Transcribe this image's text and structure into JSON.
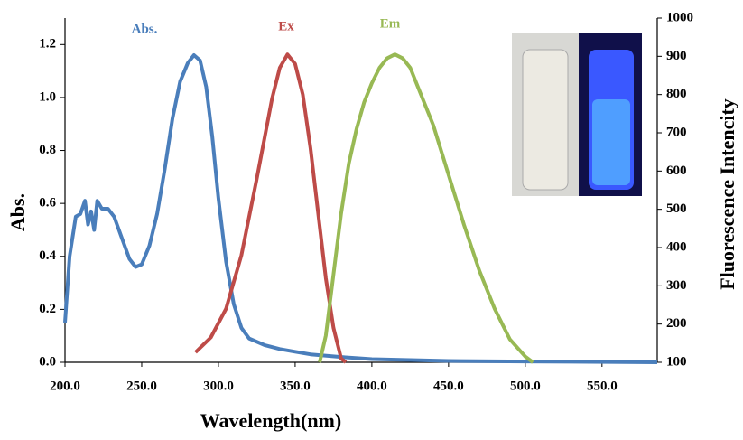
{
  "chart_data": {
    "type": "line",
    "x_label": "Wavelength(nm)",
    "y_label": "Abs.",
    "y2_label": "Fluorescence Intencity",
    "xlim": [
      200,
      586
    ],
    "ylim": [
      0,
      1.3
    ],
    "y2lim": [
      100,
      1000
    ],
    "xticks": [
      {
        "value": 200,
        "label": "200.0"
      },
      {
        "value": 250,
        "label": "250.0"
      },
      {
        "value": 300,
        "label": "300.0"
      },
      {
        "value": 350,
        "label": "350.0"
      },
      {
        "value": 400,
        "label": "400.0"
      },
      {
        "value": 450,
        "label": "450.0"
      },
      {
        "value": 500,
        "label": "500.0"
      },
      {
        "value": 550,
        "label": "550.0"
      }
    ],
    "yticks": [
      {
        "value": 0,
        "label": "0.0"
      },
      {
        "value": 0.2,
        "label": "0.2"
      },
      {
        "value": 0.4,
        "label": "0.4"
      },
      {
        "value": 0.6,
        "label": "0.6"
      },
      {
        "value": 0.8,
        "label": "0.8"
      },
      {
        "value": 1.0,
        "label": "1.0"
      },
      {
        "value": 1.2,
        "label": "1.2"
      }
    ],
    "y2ticks": [
      100,
      200,
      300,
      400,
      500,
      600,
      700,
      800,
      900,
      1000
    ],
    "series": [
      {
        "name": "Abs.",
        "color": "#4a7ebb",
        "x": [
          200,
          203,
          207,
          210,
          213,
          215,
          217,
          219,
          221,
          224,
          228,
          232,
          237,
          242,
          246,
          250,
          255,
          260,
          265,
          270,
          275,
          280,
          284,
          288,
          292,
          296,
          300,
          305,
          310,
          315,
          320,
          330,
          340,
          350,
          360,
          380,
          400,
          450,
          500,
          586
        ],
        "values": [
          0.15,
          0.4,
          0.55,
          0.56,
          0.61,
          0.52,
          0.57,
          0.5,
          0.61,
          0.58,
          0.58,
          0.55,
          0.47,
          0.39,
          0.36,
          0.37,
          0.44,
          0.56,
          0.73,
          0.92,
          1.06,
          1.13,
          1.16,
          1.14,
          1.04,
          0.85,
          0.62,
          0.38,
          0.22,
          0.13,
          0.09,
          0.065,
          0.05,
          0.04,
          0.03,
          0.02,
          0.012,
          0.005,
          0.003,
          0
        ]
      },
      {
        "name": "Ex",
        "color": "#be4b48",
        "axis": "y2",
        "x": [
          285,
          295,
          305,
          315,
          325,
          335,
          340,
          345,
          350,
          355,
          360,
          365,
          370,
          375,
          380,
          383
        ],
        "values": [
          126,
          165,
          240,
          380,
          580,
          790,
          870,
          905,
          880,
          800,
          660,
          490,
          320,
          190,
          110,
          100
        ]
      },
      {
        "name": "Em",
        "color": "#98b954",
        "axis": "y2",
        "x": [
          366,
          370,
          375,
          380,
          385,
          390,
          395,
          400,
          405,
          410,
          415,
          420,
          425,
          430,
          440,
          450,
          460,
          470,
          480,
          490,
          500,
          505
        ],
        "values": [
          100,
          170,
          330,
          490,
          620,
          710,
          780,
          830,
          870,
          895,
          905,
          895,
          870,
          820,
          720,
          590,
          460,
          340,
          240,
          160,
          115,
          100
        ]
      }
    ]
  }
}
